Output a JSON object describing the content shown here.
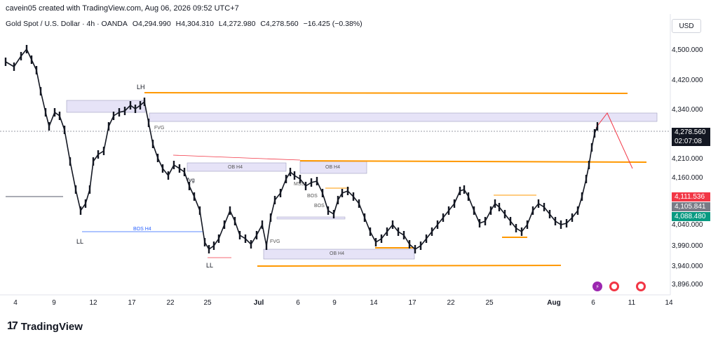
{
  "header": {
    "credit": "cavein05 created with TradingView.com, Aug 06, 2026 09:52 UTC+7",
    "symbol": "Gold Spot / U.S. Dollar · 4h · OANDA",
    "open": "O4,294.990",
    "high": "H4,304.310",
    "low": "L4,272.980",
    "close": "C4,278.560",
    "change": "−16.425 (−0.38%)"
  },
  "currency_button": "USD",
  "price_axis": {
    "ticks": [
      "4,500.000",
      "4,420.000",
      "4,340.000",
      "4,210.000",
      "4,160.000",
      "4,040.000",
      "3,990.000",
      "3,940.000",
      "3,896.000"
    ]
  },
  "badges": {
    "last_price": "4,278.560",
    "countdown": "02:07:08",
    "red": "4,111.536",
    "gray": "4,105.841",
    "green": "4,088.480"
  },
  "time_axis": {
    "labels": [
      "4",
      "9",
      "12",
      "17",
      "22",
      "25",
      "Jul",
      "6",
      "9",
      "14",
      "17",
      "22",
      "25",
      "Aug",
      "6",
      "11",
      "14"
    ]
  },
  "annotations": {
    "lh": "LH",
    "ll_left": "LL",
    "ll_right": "LL",
    "bos_h4": "BOS H4",
    "fvg_1": "FVG",
    "fvg_2": "fvg",
    "fvg_3": "FVG",
    "ob_h4_1": "OB H4",
    "ob_h4_2": "OB H4",
    "ob_h4_3": "OB H4",
    "bos_1": "BOS",
    "bos_2": "BOS",
    "mss": "MSS"
  },
  "colors": {
    "orange": "#ff9800",
    "zone": "#e6e3f7",
    "candle": "#131722",
    "red": "#f23645",
    "green": "#089981",
    "blue": "#2962ff"
  },
  "branding": "TradingView"
}
